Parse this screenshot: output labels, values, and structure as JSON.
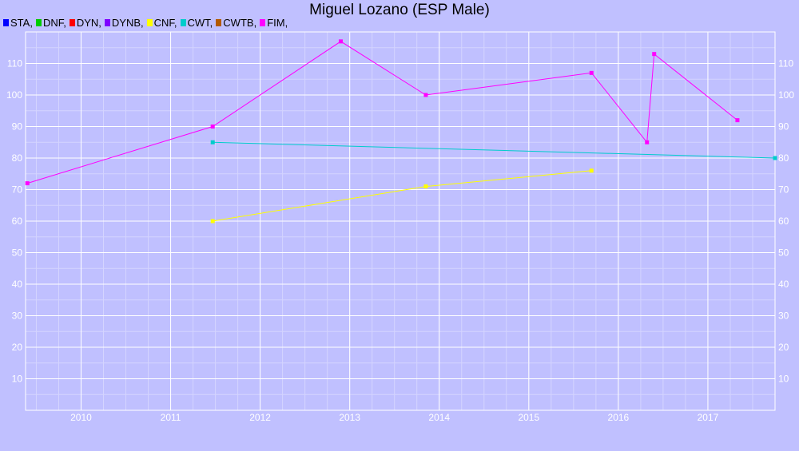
{
  "chart_data": {
    "type": "line",
    "title": "Miguel Lozano (ESP Male)",
    "xlabel": "",
    "ylabel": "",
    "xlim": [
      2009.38,
      2017.75
    ],
    "ylim": [
      0,
      120
    ],
    "grid": true,
    "legend_position": "top-left",
    "x_ticks": [
      2010,
      2011,
      2012,
      2013,
      2014,
      2015,
      2016,
      2017
    ],
    "y_ticks": [
      10,
      20,
      30,
      40,
      50,
      60,
      70,
      80,
      90,
      100,
      110
    ],
    "legend": [
      {
        "name": "STA,",
        "color": "#0000ff"
      },
      {
        "name": "DNF,",
        "color": "#00cc00"
      },
      {
        "name": "DYN,",
        "color": "#ff0000"
      },
      {
        "name": "DYNB,",
        "color": "#7f00ff"
      },
      {
        "name": "CNF,",
        "color": "#ffff00"
      },
      {
        "name": "CWT,",
        "color": "#00cccc"
      },
      {
        "name": "CWTB,",
        "color": "#b35900"
      },
      {
        "name": "FIM,",
        "color": "#ff00ff"
      }
    ],
    "series": [
      {
        "name": "FIM",
        "color": "#ff00ff",
        "x": [
          2009.4,
          2011.47,
          2012.9,
          2013.85,
          2015.7,
          2016.32,
          2016.4,
          2017.33
        ],
        "y": [
          72,
          90,
          117,
          100,
          107,
          85,
          113,
          92
        ]
      },
      {
        "name": "CWT",
        "color": "#00cccc",
        "x": [
          2011.47,
          2017.75
        ],
        "y": [
          85,
          80
        ]
      },
      {
        "name": "CNF",
        "color": "#ffff00",
        "x": [
          2011.47,
          2013.85,
          2015.7
        ],
        "y": [
          60,
          71,
          76
        ]
      }
    ]
  }
}
